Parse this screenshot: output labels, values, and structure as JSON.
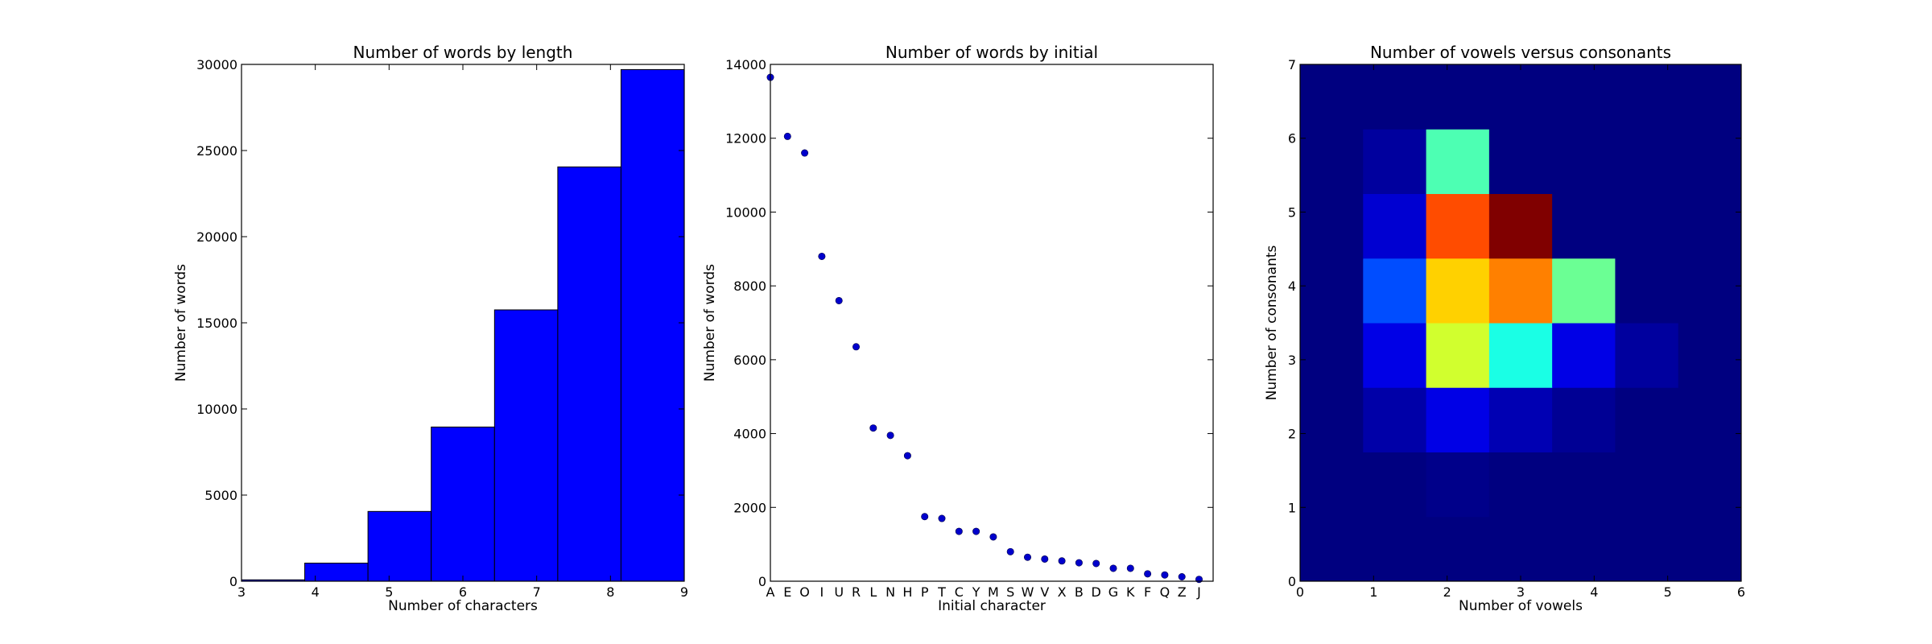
{
  "chart_data": [
    {
      "type": "bar",
      "title": "Number of words by length",
      "xlabel": "Number of characters",
      "ylabel": "Number of words",
      "xlim": [
        3,
        9
      ],
      "ylim": [
        0,
        30000
      ],
      "xticks": [
        "3",
        "4",
        "5",
        "6",
        "7",
        "8",
        "9"
      ],
      "yticks": [
        "0",
        "5000",
        "10000",
        "15000",
        "20000",
        "25000",
        "30000"
      ],
      "bin_edges": [
        3.0,
        3.857,
        4.714,
        5.571,
        6.429,
        7.286,
        8.143,
        9.0
      ],
      "values": [
        80,
        1050,
        4050,
        8950,
        15750,
        24050,
        29700
      ],
      "color": "#0000ff"
    },
    {
      "type": "scatter",
      "title": "Number of words by initial",
      "xlabel": "Initial character",
      "ylabel": "Number of words",
      "ylim": [
        0,
        14000
      ],
      "yticks": [
        "0",
        "2000",
        "4000",
        "6000",
        "8000",
        "10000",
        "12000",
        "14000"
      ],
      "categories": [
        "A",
        "E",
        "O",
        "I",
        "U",
        "R",
        "L",
        "N",
        "H",
        "P",
        "T",
        "C",
        "Y",
        "M",
        "S",
        "W",
        "V",
        "X",
        "B",
        "D",
        "G",
        "K",
        "F",
        "Q",
        "Z",
        "J"
      ],
      "values": [
        13650,
        12050,
        11600,
        8800,
        7600,
        6350,
        4150,
        3950,
        3400,
        1750,
        1700,
        1350,
        1350,
        1200,
        800,
        650,
        600,
        550,
        500,
        480,
        350,
        350,
        200,
        170,
        120,
        50
      ],
      "color": "#0000cc"
    },
    {
      "type": "heatmap",
      "title": "Number of vowels versus consonants",
      "xlabel": "Number of vowels",
      "ylabel": "Number of consonants",
      "xlim": [
        0,
        6
      ],
      "ylim": [
        0,
        7
      ],
      "xticks": [
        "0",
        "1",
        "2",
        "3",
        "4",
        "5",
        "6"
      ],
      "yticks": [
        "0",
        "1",
        "2",
        "3",
        "4",
        "5",
        "6",
        "7"
      ],
      "x_bins": 7,
      "y_bins": 8,
      "vmax": 1.0,
      "z_rows_bottom_to_top": [
        [
          0,
          0,
          0,
          0,
          0,
          0,
          0
        ],
        [
          0,
          0,
          0.01,
          0,
          0,
          0,
          0
        ],
        [
          0,
          0.04,
          0.1,
          0.05,
          0.02,
          0,
          0
        ],
        [
          0,
          0.1,
          0.58,
          0.4,
          0.1,
          0.03,
          0
        ],
        [
          0,
          0.2,
          0.67,
          0.75,
          0.48,
          0,
          0
        ],
        [
          0,
          0.08,
          0.8,
          1.0,
          0,
          0,
          0
        ],
        [
          0,
          0.03,
          0.45,
          0,
          0,
          0,
          0
        ],
        [
          0,
          0,
          0,
          0,
          0,
          0,
          0
        ]
      ]
    }
  ]
}
